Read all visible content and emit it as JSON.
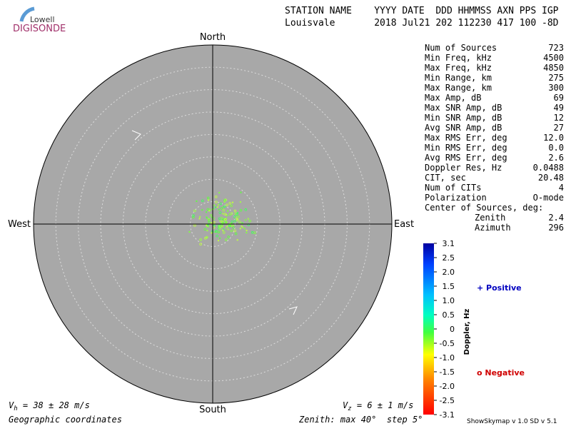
{
  "logo": {
    "top": "Lowell",
    "bottom": "DIGISONDE"
  },
  "header": {
    "line1": "STATION NAME    YYYY DATE  DDD HHMMSS AXN PPS IGP",
    "line2": "Louisvale       2018 Jul21 202 112230 417 100 -8D"
  },
  "compass": {
    "north": "North",
    "south": "South",
    "east": "East",
    "west": "West"
  },
  "stats": [
    [
      "Num of Sources",
      "723"
    ],
    [
      "Min Freq, kHz",
      "4500"
    ],
    [
      "Max Freq, kHz",
      "4850"
    ],
    [
      "Min Range, km",
      "275"
    ],
    [
      "Max Range, km",
      "300"
    ],
    [
      "Max Amp, dB",
      "69"
    ],
    [
      "Max SNR Amp, dB",
      "49"
    ],
    [
      "Min SNR Amp, dB",
      "12"
    ],
    [
      "Avg SNR Amp, dB",
      "27"
    ],
    [
      "Max RMS Err, deg",
      "12.0"
    ],
    [
      "Min RMS Err, deg",
      "0.0"
    ],
    [
      "Avg RMS Err, deg",
      "2.6"
    ],
    [
      "Doppler Res, Hz",
      "0.0488"
    ],
    [
      "CIT, sec",
      "20.48"
    ],
    [
      "Num of CITs",
      "4"
    ],
    [
      "Polarization",
      "O-mode"
    ]
  ],
  "center": {
    "title": "Center of Sources, deg:",
    "zenith_label": "Zenith",
    "zenith": "2.4",
    "azimuth_label": "Azimuth",
    "azimuth": "296"
  },
  "colorbar": {
    "title": "Doppler, Hz",
    "ticks": [
      "3.1",
      "2.5",
      "2.0",
      "1.5",
      "1.0",
      "0.5",
      "0",
      "-0.5",
      "-1.0",
      "-1.5",
      "-2.0",
      "-2.5",
      "-3.1"
    ],
    "positive": "+ Positive",
    "negative": "o Negative"
  },
  "velocity": {
    "vh_symbol": "V",
    "vh_sub": "h",
    "vh_text": " = 38 ± 28 m/s",
    "vz_symbol": "V",
    "vz_sub": "z",
    "vz_text": " = 6 ± 1 m/s"
  },
  "footer": {
    "coords": "Geographic coordinates",
    "zenith": "Zenith: max 40°  step 5°",
    "version": "ShowSkymap v 1.0  SD v 5.1"
  }
}
